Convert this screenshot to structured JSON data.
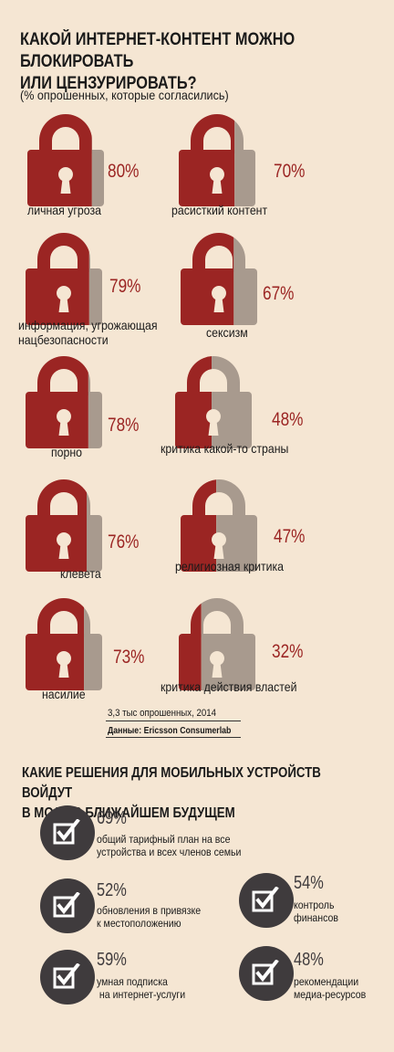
{
  "title_line1": "КАКОЙ ИНТЕРНЕТ-КОНТЕНТ МОЖНО БЛОКИРОВАТЬ",
  "title_line2": "ИЛИ ЦЕНЗУРИРОВАТЬ?",
  "subtitle": "(% опрошенных, которые согласились)",
  "colors": {
    "red": "#9b2523",
    "gray": "#a89a8e",
    "dark": "#3f3b3d",
    "bg": "#f5e6d3"
  },
  "locks": [
    {
      "pct_label": "80%",
      "value": 80,
      "label": [
        "личная угроза"
      ]
    },
    {
      "pct_label": "70%",
      "value": 70,
      "label": [
        "расисткий контент"
      ]
    },
    {
      "pct_label": "79%",
      "value": 79,
      "label": [
        "информация, угрожающая",
        "нацбезопасности"
      ]
    },
    {
      "pct_label": "67%",
      "value": 67,
      "label": [
        "сексизм"
      ]
    },
    {
      "pct_label": "78%",
      "value": 78,
      "label": [
        "порно"
      ]
    },
    {
      "pct_label": "48%",
      "value": 48,
      "label": [
        "критика какой-то страны"
      ]
    },
    {
      "pct_label": "76%",
      "value": 76,
      "label": [
        "клевета"
      ]
    },
    {
      "pct_label": "47%",
      "value": 47,
      "label": [
        "религиозная критика"
      ]
    },
    {
      "pct_label": "73%",
      "value": 73,
      "label": [
        "насилие"
      ]
    },
    {
      "pct_label": "32%",
      "value": 32,
      "label": [
        "критика действия властей"
      ]
    }
  ],
  "footnote": "3,3 тыс опрошенных, 2014",
  "source": "Данные: Ericsson Consumerlab",
  "title2_line1": "КАКИЕ РЕШЕНИЯ ДЛЯ МОБИЛЬНЫХ УСТРОЙСТВ ВОЙДУТ",
  "title2_line2": "В МОДУ В БЛИЖАЙШЕМ БУДУЩЕМ",
  "mobile": [
    {
      "pct": "69%",
      "text": [
        "общий тарифный план на все",
        "устройства и всех членов семьи"
      ],
      "icon": "checkbox-icon"
    },
    {
      "pct": "52%",
      "text": [
        "обновления в привязке",
        "к местоположению"
      ],
      "icon": "checkbox-icon"
    },
    {
      "pct": "54%",
      "text": [
        "контроль",
        "финансов"
      ],
      "icon": "checkbox-icon"
    },
    {
      "pct": "59%",
      "text": [
        "умная подписка",
        " на интернет-услуги"
      ],
      "icon": "checkbox-icon"
    },
    {
      "pct": "48%",
      "text": [
        "рекомендации",
        "медиа-ресурсов"
      ],
      "icon": "checkbox-icon"
    }
  ]
}
